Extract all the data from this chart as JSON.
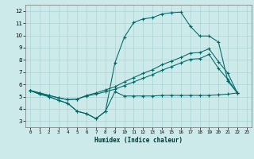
{
  "xlabel": "Humidex (Indice chaleur)",
  "bg_color": "#cceaea",
  "line_color": "#006666",
  "grid_color": "#aad4d4",
  "xlim": [
    -0.5,
    23.5
  ],
  "ylim": [
    2.5,
    12.5
  ],
  "xticks": [
    0,
    1,
    2,
    3,
    4,
    5,
    6,
    7,
    8,
    9,
    10,
    11,
    12,
    13,
    14,
    15,
    16,
    17,
    18,
    19,
    20,
    21,
    22,
    23
  ],
  "yticks": [
    3,
    4,
    5,
    6,
    7,
    8,
    9,
    10,
    11,
    12
  ],
  "line1_x": [
    0,
    1,
    2,
    3,
    4,
    5,
    6,
    7,
    8,
    9,
    10,
    11,
    12,
    13,
    14,
    15,
    16,
    17,
    18,
    19,
    20,
    21,
    22
  ],
  "line1_y": [
    5.5,
    5.2,
    5.0,
    4.7,
    4.45,
    3.8,
    3.6,
    3.2,
    3.8,
    5.4,
    5.05,
    5.05,
    5.05,
    5.05,
    5.1,
    5.1,
    5.1,
    5.1,
    5.1,
    5.1,
    5.15,
    5.2,
    5.3
  ],
  "line2_x": [
    0,
    1,
    2,
    3,
    4,
    5,
    6,
    7,
    8,
    9,
    10,
    11,
    12,
    13,
    14,
    15,
    16,
    17,
    18,
    19,
    20,
    21,
    22
  ],
  "line2_y": [
    5.5,
    5.3,
    5.1,
    4.9,
    4.75,
    4.8,
    5.05,
    5.2,
    5.4,
    5.6,
    5.9,
    6.2,
    6.5,
    6.8,
    7.15,
    7.45,
    7.75,
    8.05,
    8.1,
    8.45,
    7.3,
    6.4,
    5.3
  ],
  "line3_x": [
    0,
    1,
    2,
    3,
    4,
    5,
    6,
    7,
    8,
    9,
    10,
    11,
    12,
    13,
    14,
    15,
    16,
    17,
    18,
    19,
    20,
    21,
    22
  ],
  "line3_y": [
    5.5,
    5.3,
    5.1,
    4.9,
    4.75,
    4.8,
    5.1,
    5.3,
    5.55,
    5.8,
    6.2,
    6.55,
    6.9,
    7.2,
    7.6,
    7.9,
    8.2,
    8.55,
    8.6,
    8.9,
    7.85,
    6.9,
    5.3
  ],
  "line4_x": [
    0,
    1,
    2,
    3,
    4,
    5,
    6,
    7,
    8,
    9,
    10,
    11,
    12,
    13,
    14,
    15,
    16,
    17,
    18,
    19,
    20,
    21,
    22
  ],
  "line4_y": [
    5.5,
    5.2,
    5.0,
    4.7,
    4.45,
    3.8,
    3.6,
    3.2,
    3.8,
    7.75,
    9.85,
    11.05,
    11.35,
    11.45,
    11.75,
    11.85,
    11.9,
    10.75,
    9.95,
    9.95,
    9.45,
    6.25,
    5.3
  ]
}
